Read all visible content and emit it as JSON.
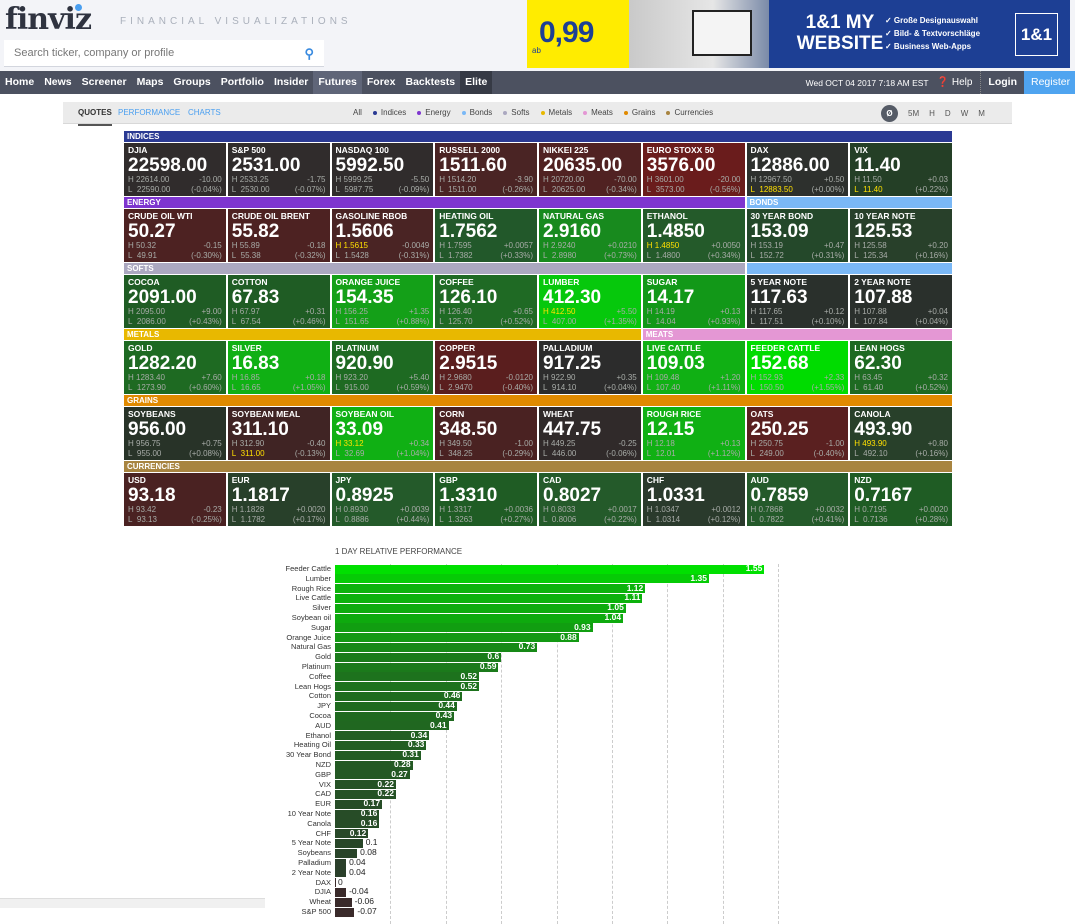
{
  "header": {
    "logo": "finviz",
    "tagline": "FINANCIAL VISUALIZATIONS",
    "search_placeholder": "Search ticker, company or profile"
  },
  "ad": {
    "price": "0,99",
    "ab": "ab",
    "headline": "1&1 MY WEBSITE",
    "bullets": [
      "✓ Große Designauswahl",
      "✓ Bild- & Textvorschläge",
      "✓ Business Web-Apps"
    ],
    "brand": "1&1"
  },
  "nav": {
    "items": [
      "Home",
      "News",
      "Screener",
      "Maps",
      "Groups",
      "Portfolio",
      "Insider",
      "Futures",
      "Forex",
      "Backtests",
      "Elite"
    ],
    "active": "Futures",
    "date": "Wed OCT 04 2017 7:18 AM EST",
    "help": "Help",
    "login": "Login",
    "register": "Register"
  },
  "filter": {
    "views": [
      "QUOTES",
      "PERFORMANCE",
      "CHARTS"
    ],
    "categories": [
      {
        "label": "All",
        "color": ""
      },
      {
        "label": "Indices",
        "color": "#2b3a93"
      },
      {
        "label": "Energy",
        "color": "#7e35cf"
      },
      {
        "label": "Bonds",
        "color": "#7ab8f6"
      },
      {
        "label": "Softs",
        "color": "#aba8c0"
      },
      {
        "label": "Metals",
        "color": "#e8b800"
      },
      {
        "label": "Meats",
        "color": "#e497d4"
      },
      {
        "label": "Grains",
        "color": "#e08a00"
      },
      {
        "label": "Currencies",
        "color": "#a88440"
      }
    ],
    "timeframes": [
      "Ø",
      "5M",
      "H",
      "D",
      "W",
      "M"
    ]
  },
  "sections": [
    {
      "label": "INDICES",
      "color": "#2b3a93",
      "row": 1,
      "col": 1,
      "span": 8
    },
    {
      "label": "ENERGY",
      "color": "#7e35cf",
      "row": 3,
      "col": 1,
      "span": 6
    },
    {
      "label": "BONDS",
      "color": "#7ab8f6",
      "row": 3,
      "col": 7,
      "span": 2
    },
    {
      "label": "SOFTS",
      "color": "#aba8c0",
      "row": 5,
      "col": 1,
      "span": 6
    },
    {
      "label": "",
      "color": "#7ab8f6",
      "row": 5,
      "col": 7,
      "span": 2
    },
    {
      "label": "METALS",
      "color": "#e8b800",
      "row": 7,
      "col": 1,
      "span": 5
    },
    {
      "label": "MEATS",
      "color": "#e497d4",
      "row": 7,
      "col": 6,
      "span": 3
    },
    {
      "label": "GRAINS",
      "color": "#e08a00",
      "row": 9,
      "col": 1,
      "span": 8
    },
    {
      "label": "CURRENCIES",
      "color": "#a88440",
      "row": 11,
      "col": 1,
      "span": 8
    }
  ],
  "tiles": [
    {
      "n": "DJIA",
      "p": "22598.00",
      "h": "22614.00",
      "l": "22590.00",
      "c": "-10.00",
      "pc": "(-0.04%)",
      "bg": "#302c2c",
      "hl": ""
    },
    {
      "n": "S&P 500",
      "p": "2531.00",
      "h": "2533.25",
      "l": "2530.00",
      "c": "-1.75",
      "pc": "(-0.07%)",
      "bg": "#302c2c",
      "hl": ""
    },
    {
      "n": "NASDAQ 100",
      "p": "5992.50",
      "h": "5999.25",
      "l": "5987.75",
      "c": "-5.50",
      "pc": "(-0.09%)",
      "bg": "#302c2c",
      "hl": ""
    },
    {
      "n": "RUSSELL 2000",
      "p": "1511.60",
      "h": "1514.20",
      "l": "1511.00",
      "c": "-3.90",
      "pc": "(-0.26%)",
      "bg": "#4a2424",
      "hl": ""
    },
    {
      "n": "NIKKEI 225",
      "p": "20635.00",
      "h": "20720.00",
      "l": "20625.00",
      "c": "-70.00",
      "pc": "(-0.34%)",
      "bg": "#502222",
      "hl": ""
    },
    {
      "n": "EURO STOXX 50",
      "p": "3576.00",
      "h": "3601.00",
      "l": "3573.00",
      "c": "-20.00",
      "pc": "(-0.56%)",
      "bg": "#6a1c1c",
      "hl": ""
    },
    {
      "n": "DAX",
      "p": "12886.00",
      "h": "12967.50",
      "l": "12883.50",
      "c": "+0.50",
      "pc": "(+0.00%)",
      "bg": "#2d302d",
      "hl": "l"
    },
    {
      "n": "VIX",
      "p": "11.40",
      "h": "11.50",
      "l": "11.40",
      "c": "+0.03",
      "pc": "(+0.22%)",
      "bg": "#243f26",
      "hl": "l"
    },
    {
      "n": "CRUDE OIL WTI",
      "p": "50.27",
      "h": "50.32",
      "l": "49.91",
      "c": "-0.15",
      "pc": "(-0.30%)",
      "bg": "#4d2222",
      "hl": ""
    },
    {
      "n": "CRUDE OIL BRENT",
      "p": "55.82",
      "h": "55.89",
      "l": "55.38",
      "c": "-0.18",
      "pc": "(-0.32%)",
      "bg": "#4d2222",
      "hl": ""
    },
    {
      "n": "GASOLINE RBOB",
      "p": "1.5606",
      "h": "1.5615",
      "l": "1.5428",
      "c": "-0.0049",
      "pc": "(-0.31%)",
      "bg": "#4a2424",
      "hl": "h"
    },
    {
      "n": "HEATING OIL",
      "p": "1.7562",
      "h": "1.7595",
      "l": "1.7382",
      "c": "+0.0057",
      "pc": "(+0.33%)",
      "bg": "#22582a",
      "hl": ""
    },
    {
      "n": "NATURAL GAS",
      "p": "2.9160",
      "h": "2.9240",
      "l": "2.8980",
      "c": "+0.0210",
      "pc": "(+0.73%)",
      "bg": "#188a1e",
      "hl": ""
    },
    {
      "n": "ETHANOL",
      "p": "1.4850",
      "h": "1.4850",
      "l": "1.4800",
      "c": "+0.0050",
      "pc": "(+0.34%)",
      "bg": "#245a2a",
      "hl": "h"
    },
    {
      "n": "30 YEAR BOND",
      "p": "153.09",
      "h": "153.19",
      "l": "152.72",
      "c": "+0.47",
      "pc": "(+0.31%)",
      "bg": "#24482a",
      "hl": ""
    },
    {
      "n": "10 YEAR NOTE",
      "p": "125.53",
      "h": "125.58",
      "l": "125.34",
      "c": "+0.20",
      "pc": "(+0.16%)",
      "bg": "#28402a",
      "hl": ""
    },
    {
      "n": "COCOA",
      "p": "2091.00",
      "h": "2095.00",
      "l": "2086.00",
      "c": "+9.00",
      "pc": "(+0.43%)",
      "bg": "#1f5c24",
      "hl": ""
    },
    {
      "n": "COTTON",
      "p": "67.83",
      "h": "67.97",
      "l": "67.54",
      "c": "+0.31",
      "pc": "(+0.46%)",
      "bg": "#1f5c24",
      "hl": ""
    },
    {
      "n": "ORANGE JUICE",
      "p": "154.35",
      "h": "156.25",
      "l": "151.65",
      "c": "+1.35",
      "pc": "(+0.88%)",
      "bg": "#14a018",
      "hl": ""
    },
    {
      "n": "COFFEE",
      "p": "126.10",
      "h": "126.40",
      "l": "125.70",
      "c": "+0.65",
      "pc": "(+0.52%)",
      "bg": "#1f6a24",
      "hl": ""
    },
    {
      "n": "LUMBER",
      "p": "412.30",
      "h": "412.50",
      "l": "407.00",
      "c": "+5.50",
      "pc": "(+1.35%)",
      "bg": "#06c80c",
      "hl": "h"
    },
    {
      "n": "SUGAR",
      "p": "14.17",
      "h": "14.19",
      "l": "14.04",
      "c": "+0.13",
      "pc": "(+0.93%)",
      "bg": "#129818",
      "hl": ""
    },
    {
      "n": "5 YEAR NOTE",
      "p": "117.63",
      "h": "117.65",
      "l": "117.51",
      "c": "+0.12",
      "pc": "(+0.10%)",
      "bg": "#2a302c",
      "hl": ""
    },
    {
      "n": "2 YEAR NOTE",
      "p": "107.88",
      "h": "107.88",
      "l": "107.84",
      "c": "+0.04",
      "pc": "(+0.04%)",
      "bg": "#2a302c",
      "hl": ""
    },
    {
      "n": "GOLD",
      "p": "1282.20",
      "h": "1283.40",
      "l": "1273.90",
      "c": "+7.60",
      "pc": "(+0.60%)",
      "bg": "#1e6a22",
      "hl": ""
    },
    {
      "n": "SILVER",
      "p": "16.83",
      "h": "16.85",
      "l": "16.65",
      "c": "+0.18",
      "pc": "(+1.05%)",
      "bg": "#10b014",
      "hl": ""
    },
    {
      "n": "PLATINUM",
      "p": "920.90",
      "h": "923.20",
      "l": "915.00",
      "c": "+5.40",
      "pc": "(+0.59%)",
      "bg": "#1e6a22",
      "hl": ""
    },
    {
      "n": "COPPER",
      "p": "2.9515",
      "h": "2.9680",
      "l": "2.9470",
      "c": "-0.0120",
      "pc": "(-0.40%)",
      "bg": "#5a1e1e",
      "hl": ""
    },
    {
      "n": "PALLADIUM",
      "p": "917.25",
      "h": "922.90",
      "l": "914.10",
      "c": "+0.35",
      "pc": "(+0.04%)",
      "bg": "#2c2c2c",
      "hl": ""
    },
    {
      "n": "LIVE CATTLE",
      "p": "109.03",
      "h": "109.48",
      "l": "107.40",
      "c": "+1.20",
      "pc": "(+1.11%)",
      "bg": "#10b014",
      "hl": ""
    },
    {
      "n": "FEEDER CATTLE",
      "p": "152.68",
      "h": "152.93",
      "l": "150.50",
      "c": "+2.33",
      "pc": "(+1.55%)",
      "bg": "#00dc00",
      "hl": ""
    },
    {
      "n": "LEAN HOGS",
      "p": "62.30",
      "h": "63.45",
      "l": "61.40",
      "c": "+0.32",
      "pc": "(+0.52%)",
      "bg": "#1e6a22",
      "hl": ""
    },
    {
      "n": "SOYBEANS",
      "p": "956.00",
      "h": "956.75",
      "l": "955.00",
      "c": "+0.75",
      "pc": "(+0.08%)",
      "bg": "#283328",
      "hl": ""
    },
    {
      "n": "SOYBEAN MEAL",
      "p": "311.10",
      "h": "312.90",
      "l": "311.00",
      "c": "-0.40",
      "pc": "(-0.13%)",
      "bg": "#402424",
      "hl": "l"
    },
    {
      "n": "SOYBEAN OIL",
      "p": "33.09",
      "h": "33.12",
      "l": "32.69",
      "c": "+0.34",
      "pc": "(+1.04%)",
      "bg": "#10b014",
      "hl": "h"
    },
    {
      "n": "CORN",
      "p": "348.50",
      "h": "349.50",
      "l": "348.25",
      "c": "-1.00",
      "pc": "(-0.29%)",
      "bg": "#4a2222",
      "hl": ""
    },
    {
      "n": "WHEAT",
      "p": "447.75",
      "h": "449.25",
      "l": "446.00",
      "c": "-0.25",
      "pc": "(-0.06%)",
      "bg": "#302a2a",
      "hl": ""
    },
    {
      "n": "ROUGH RICE",
      "p": "12.15",
      "h": "12.18",
      "l": "12.01",
      "c": "+0.13",
      "pc": "(+1.12%)",
      "bg": "#10b014",
      "hl": ""
    },
    {
      "n": "OATS",
      "p": "250.25",
      "h": "250.75",
      "l": "249.00",
      "c": "-1.00",
      "pc": "(-0.40%)",
      "bg": "#5a2020",
      "hl": ""
    },
    {
      "n": "CANOLA",
      "p": "493.90",
      "h": "493.90",
      "l": "492.10",
      "c": "+0.80",
      "pc": "(+0.16%)",
      "bg": "#28402a",
      "hl": "h"
    },
    {
      "n": "USD",
      "p": "93.18",
      "h": "93.42",
      "l": "93.13",
      "c": "-0.23",
      "pc": "(-0.25%)",
      "bg": "#4a2222",
      "hl": ""
    },
    {
      "n": "EUR",
      "p": "1.1817",
      "h": "1.1828",
      "l": "1.1782",
      "c": "+0.0020",
      "pc": "(+0.17%)",
      "bg": "#28402a",
      "hl": ""
    },
    {
      "n": "JPY",
      "p": "0.8925",
      "h": "0.8930",
      "l": "0.8886",
      "c": "+0.0039",
      "pc": "(+0.44%)",
      "bg": "#245a2a",
      "hl": ""
    },
    {
      "n": "GBP",
      "p": "1.3310",
      "h": "1.3317",
      "l": "1.3263",
      "c": "+0.0036",
      "pc": "(+0.27%)",
      "bg": "#1f5c24",
      "hl": ""
    },
    {
      "n": "CAD",
      "p": "0.8027",
      "h": "0.8033",
      "l": "0.8006",
      "c": "+0.0017",
      "pc": "(+0.22%)",
      "bg": "#245a2a",
      "hl": ""
    },
    {
      "n": "CHF",
      "p": "1.0331",
      "h": "1.0347",
      "l": "1.0314",
      "c": "+0.0012",
      "pc": "(+0.12%)",
      "bg": "#2a3a2c",
      "hl": ""
    },
    {
      "n": "AUD",
      "p": "0.7859",
      "h": "0.7868",
      "l": "0.7822",
      "c": "+0.0032",
      "pc": "(+0.41%)",
      "bg": "#245a2a",
      "hl": ""
    },
    {
      "n": "NZD",
      "p": "0.7167",
      "h": "0.7195",
      "l": "0.7136",
      "c": "+0.0020",
      "pc": "(+0.28%)",
      "bg": "#1f5c24",
      "hl": ""
    }
  ],
  "chart_data": {
    "type": "bar",
    "orientation": "horizontal",
    "title": "1 DAY RELATIVE PERFORMANCE",
    "xlabel": "",
    "ylabel": "",
    "xlim": [
      0,
      1.6
    ],
    "grid": true,
    "labels": [
      "Feeder Cattle",
      "Lumber",
      "Rough Rice",
      "Live Cattle",
      "Silver",
      "Soybean oil",
      "Sugar",
      "Orange Juice",
      "Natural Gas",
      "Gold",
      "Platinum",
      "Coffee",
      "Lean Hogs",
      "Cotton",
      "JPY",
      "Cocoa",
      "AUD",
      "Ethanol",
      "Heating Oil",
      "30 Year Bond",
      "NZD",
      "GBP",
      "VIX",
      "CAD",
      "EUR",
      "10 Year Note",
      "Canola",
      "CHF",
      "5 Year Note",
      "Soybeans",
      "Palladium",
      "2 Year Note",
      "DAX",
      "DJIA",
      "Wheat",
      "S&P 500"
    ],
    "values": [
      1.55,
      1.35,
      1.12,
      1.11,
      1.05,
      1.04,
      0.93,
      0.88,
      0.73,
      0.6,
      0.59,
      0.52,
      0.52,
      0.46,
      0.44,
      0.43,
      0.41,
      0.34,
      0.33,
      0.31,
      0.28,
      0.27,
      0.22,
      0.22,
      0.17,
      0.16,
      0.16,
      0.12,
      0.1,
      0.08,
      0.04,
      0.04,
      0,
      -0.04,
      -0.06,
      -0.07
    ]
  }
}
